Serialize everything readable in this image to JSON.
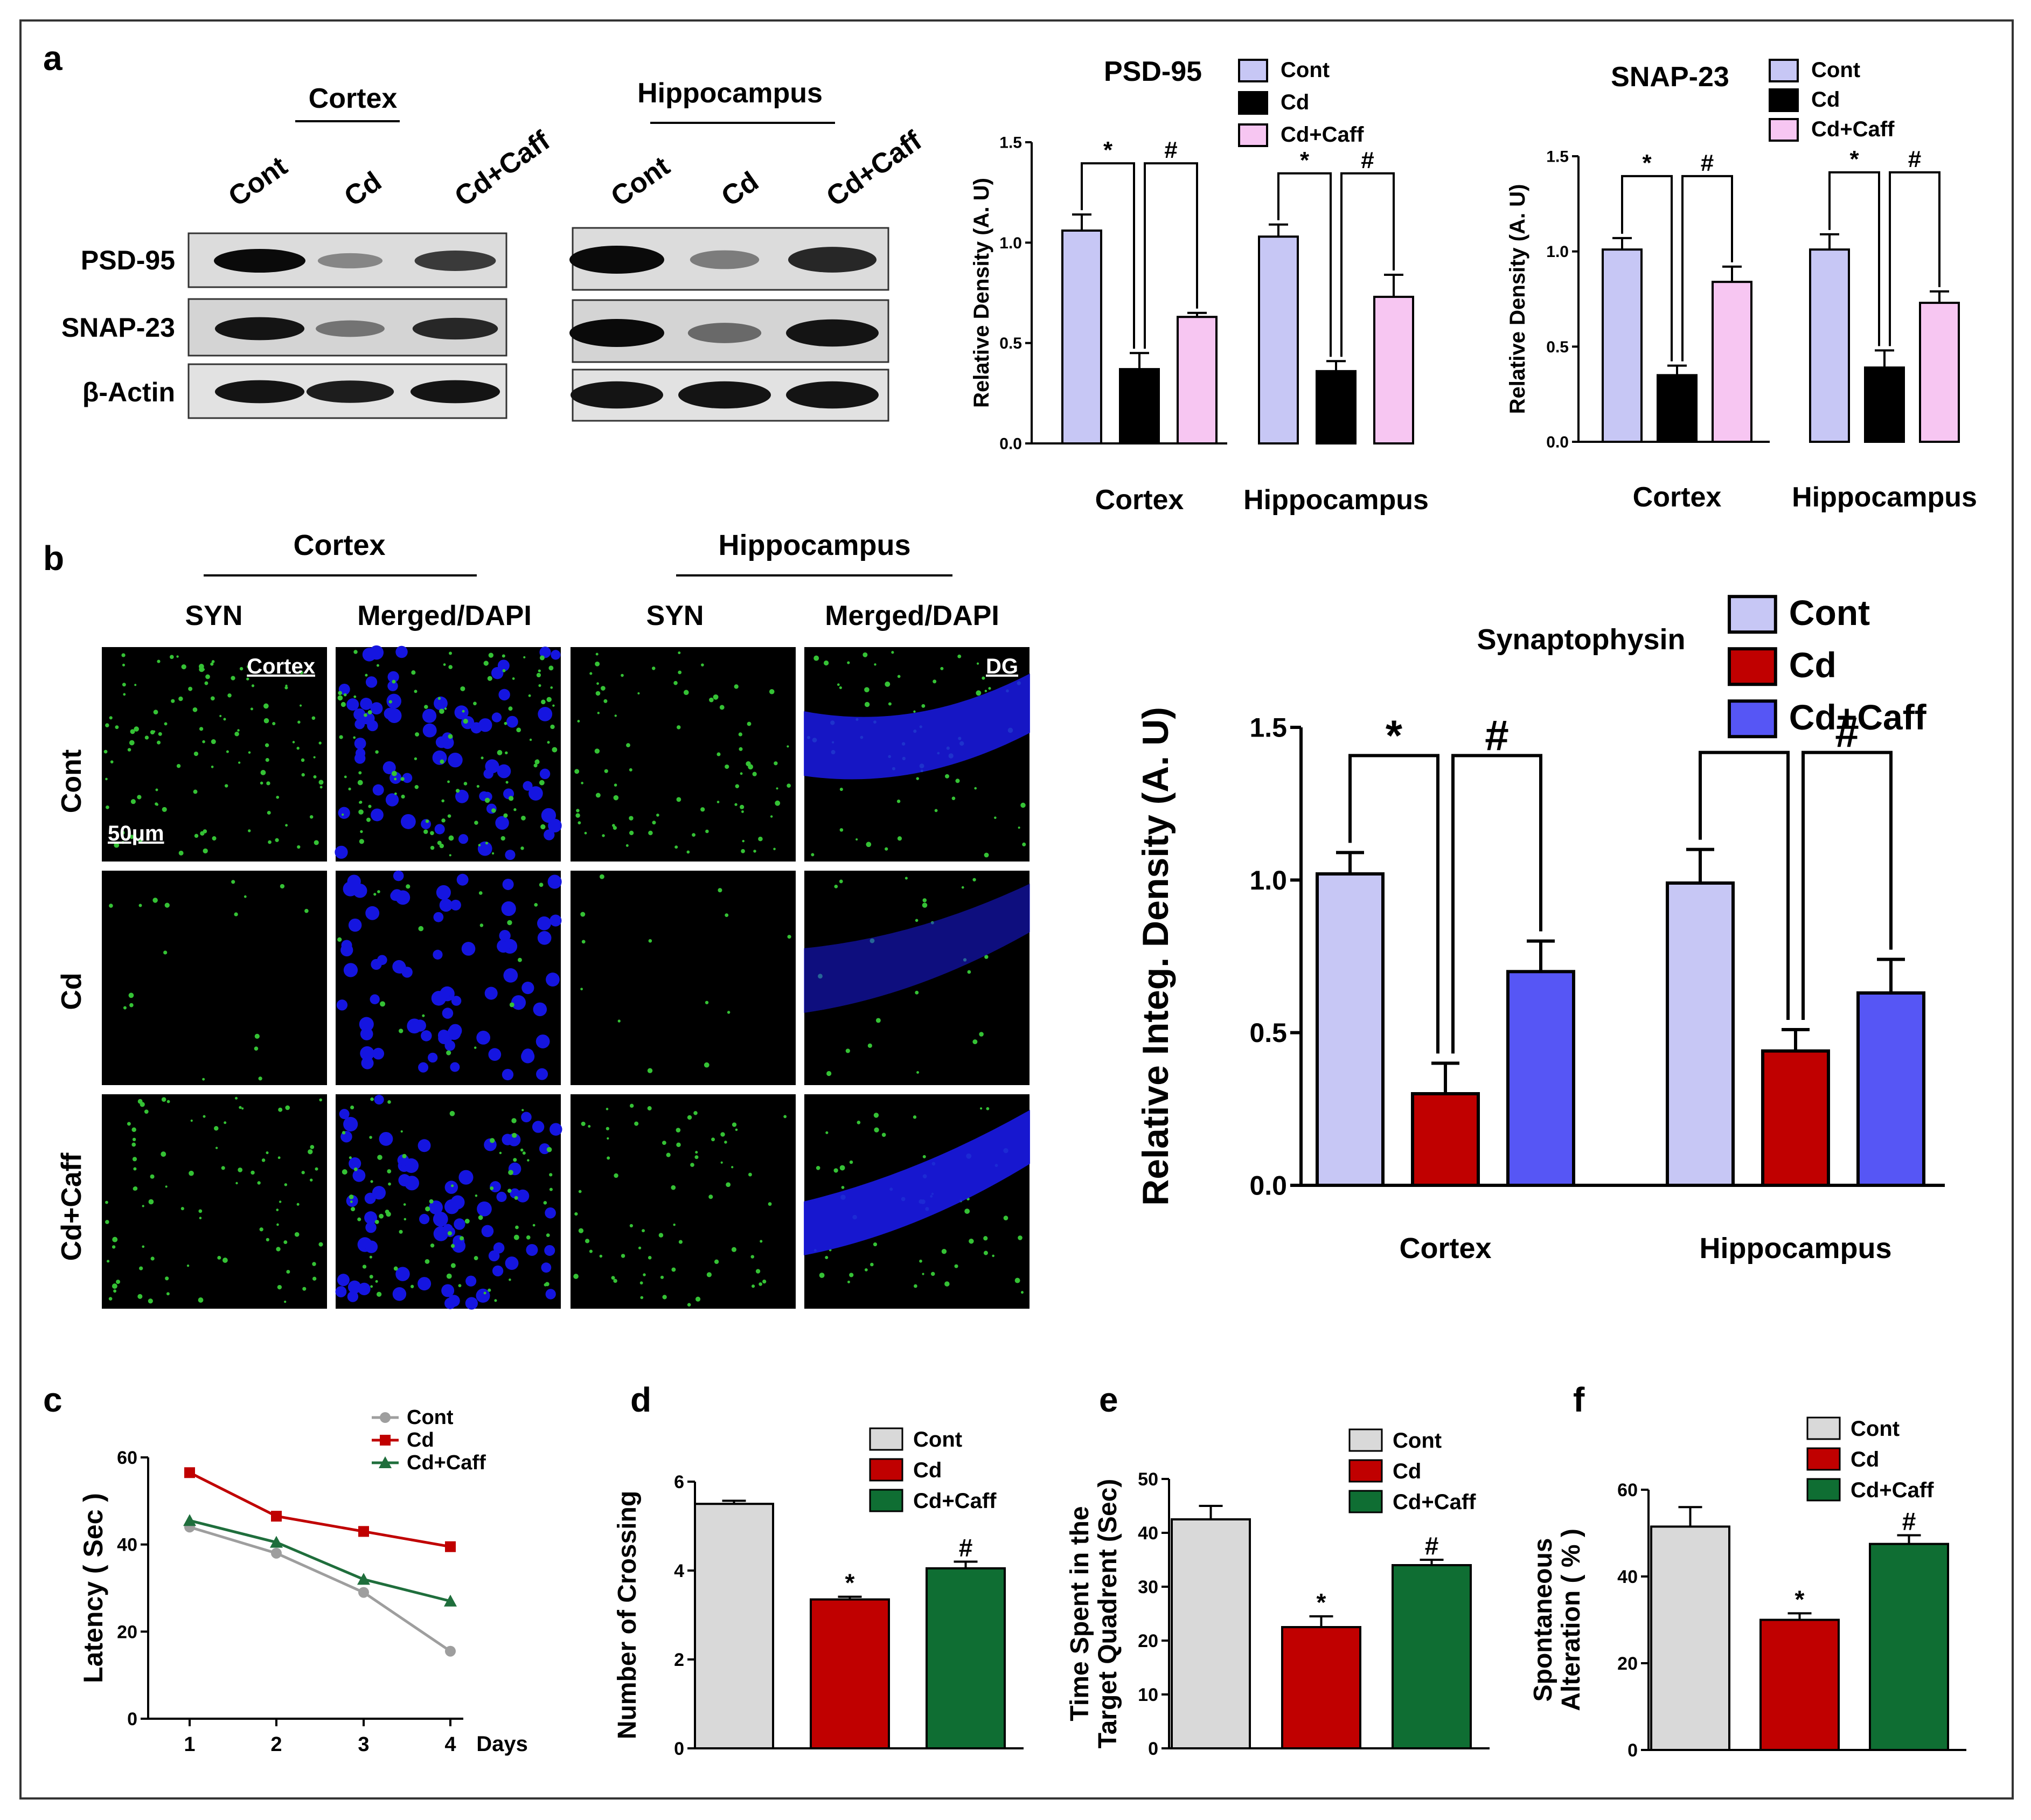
{
  "colors": {
    "cont_lav": "#c7c7f5",
    "cd_black": "#000000",
    "caff_pink": "#f7c6f2",
    "cd_red": "#c00000",
    "caff_blue": "#5656f5",
    "grey": "#d9d9d9",
    "dgreen": "#0f6e33",
    "line_grey": "#9e9e9e",
    "line_red": "#c00000",
    "line_green": "#1f6e3c",
    "syn_green": "#35c235",
    "dapi_blue": "#1515e0"
  },
  "panels": {
    "a": {
      "label": "a",
      "blot": {
        "cortex_title": "Cortex",
        "hippo_title": "Hippocampus",
        "lanes": [
          "Cont",
          "Cd",
          "Cd+Caff"
        ],
        "rows": [
          "PSD-95",
          "SNAP-23",
          "β-Actin"
        ],
        "intensity": {
          "cortex": [
            [
              1.0,
              0.35,
              0.75
            ],
            [
              0.95,
              0.45,
              0.85
            ],
            [
              0.95,
              0.9,
              0.95
            ]
          ],
          "hippo": [
            [
              1.0,
              0.4,
              0.85
            ],
            [
              1.0,
              0.5,
              0.95
            ],
            [
              0.95,
              0.95,
              0.95
            ]
          ]
        }
      }
    },
    "b": {
      "label": "b",
      "cortex_title": "Cortex",
      "hippo_title": "Hippocampus",
      "col_labels": [
        "SYN",
        "Merged/DAPI",
        "SYN",
        "Merged/DAPI"
      ],
      "row_labels": [
        "Cont",
        "Cd",
        "Cd+Caff"
      ],
      "tag_cortex": "Cortex",
      "tag_dg": "DG",
      "scale_bar": "50μm"
    },
    "c": {
      "label": "c"
    },
    "d": {
      "label": "d"
    },
    "e": {
      "label": "e"
    },
    "f": {
      "label": "f"
    }
  },
  "chart_data": [
    {
      "id": "psd95",
      "type": "bar",
      "title": "PSD-95",
      "ylabel": "Relative Density (A. U)",
      "categories": [
        "Cortex",
        "Hippocampus"
      ],
      "ylim": [
        0,
        1.5
      ],
      "yticks": [
        "0.0",
        "0.5",
        "1.0",
        "1.5"
      ],
      "series": [
        {
          "name": "Cont",
          "values": [
            1.06,
            1.03
          ],
          "errors": [
            0.08,
            0.06
          ]
        },
        {
          "name": "Cd",
          "values": [
            0.37,
            0.36
          ],
          "errors": [
            0.08,
            0.05
          ]
        },
        {
          "name": "Cd+Caff",
          "values": [
            0.63,
            0.73
          ],
          "errors": [
            0.02,
            0.11
          ]
        }
      ],
      "significance": [
        "*",
        "#"
      ]
    },
    {
      "id": "snap23",
      "type": "bar",
      "title": "SNAP-23",
      "ylabel": "Relative Density (A. U)",
      "categories": [
        "Cortex",
        "Hippocampus"
      ],
      "ylim": [
        0,
        1.5
      ],
      "yticks": [
        "0.0",
        "0.5",
        "1.0",
        "1.5"
      ],
      "series": [
        {
          "name": "Cont",
          "values": [
            1.01,
            1.01
          ],
          "errors": [
            0.06,
            0.08
          ]
        },
        {
          "name": "Cd",
          "values": [
            0.35,
            0.39
          ],
          "errors": [
            0.05,
            0.09
          ]
        },
        {
          "name": "Cd+Caff",
          "values": [
            0.84,
            0.73
          ],
          "errors": [
            0.08,
            0.06
          ]
        }
      ],
      "significance": [
        "*",
        "#"
      ]
    },
    {
      "id": "synaptophysin",
      "type": "bar",
      "title": "Synaptophysin",
      "ylabel": "Relative Integ. Density (A. U)",
      "categories": [
        "Cortex",
        "Hippocampus"
      ],
      "ylim": [
        0,
        1.5
      ],
      "yticks": [
        "0.0",
        "0.5",
        "1.0",
        "1.5"
      ],
      "series": [
        {
          "name": "Cont",
          "values": [
            1.02,
            0.99
          ],
          "errors": [
            0.07,
            0.11
          ]
        },
        {
          "name": "Cd",
          "values": [
            0.3,
            0.44
          ],
          "errors": [
            0.1,
            0.07
          ]
        },
        {
          "name": "Cd+Caff",
          "values": [
            0.7,
            0.63
          ],
          "errors": [
            0.1,
            0.11
          ]
        }
      ],
      "significance": [
        "*",
        "#"
      ]
    },
    {
      "id": "latency",
      "type": "line",
      "ylabel": "Latency ( Sec )",
      "xlabel": "Days",
      "x": [
        1,
        2,
        3,
        4
      ],
      "xticks": [
        "1",
        "2",
        "3",
        "4"
      ],
      "ylim": [
        0,
        60
      ],
      "yticks": [
        "0",
        "20",
        "40",
        "60"
      ],
      "series": [
        {
          "name": "Cont",
          "values": [
            44,
            38,
            29,
            15.5
          ]
        },
        {
          "name": "Cd",
          "values": [
            56.5,
            46.5,
            43,
            39.5
          ]
        },
        {
          "name": "Cd+Caff",
          "values": [
            45.5,
            40.5,
            32,
            27
          ]
        }
      ]
    },
    {
      "id": "crossing",
      "type": "bar",
      "ylabel": "Number of Crossing",
      "categories": [
        "Cont",
        "Cd",
        "Cd+Caff"
      ],
      "values": [
        5.5,
        3.35,
        4.05
      ],
      "errors": [
        0.07,
        0.06,
        0.15
      ],
      "marks": [
        "",
        "*",
        "#"
      ],
      "ylim": [
        0,
        6
      ],
      "yticks": [
        "0",
        "2",
        "4",
        "6"
      ]
    },
    {
      "id": "time_target",
      "type": "bar",
      "ylabel": [
        "Time Spent in the",
        "Target Quadrent (Sec)"
      ],
      "categories": [
        "Cont",
        "Cd",
        "Cd+Caff"
      ],
      "values": [
        42.5,
        22.5,
        34
      ],
      "errors": [
        2.5,
        2,
        1
      ],
      "marks": [
        "",
        "*",
        "#"
      ],
      "ylim": [
        0,
        50
      ],
      "yticks": [
        "0",
        "10",
        "20",
        "30",
        "40",
        "50"
      ]
    },
    {
      "id": "alteration",
      "type": "bar",
      "ylabel": [
        "Spontaneous",
        "Alteration ( % )"
      ],
      "categories": [
        "Cont",
        "Cd",
        "Cd+Caff"
      ],
      "values": [
        51.5,
        30,
        47.5
      ],
      "errors": [
        4.5,
        1.5,
        2
      ],
      "marks": [
        "",
        "*",
        "#"
      ],
      "ylim": [
        0,
        60
      ],
      "yticks": [
        "0",
        "20",
        "40",
        "60"
      ]
    }
  ]
}
